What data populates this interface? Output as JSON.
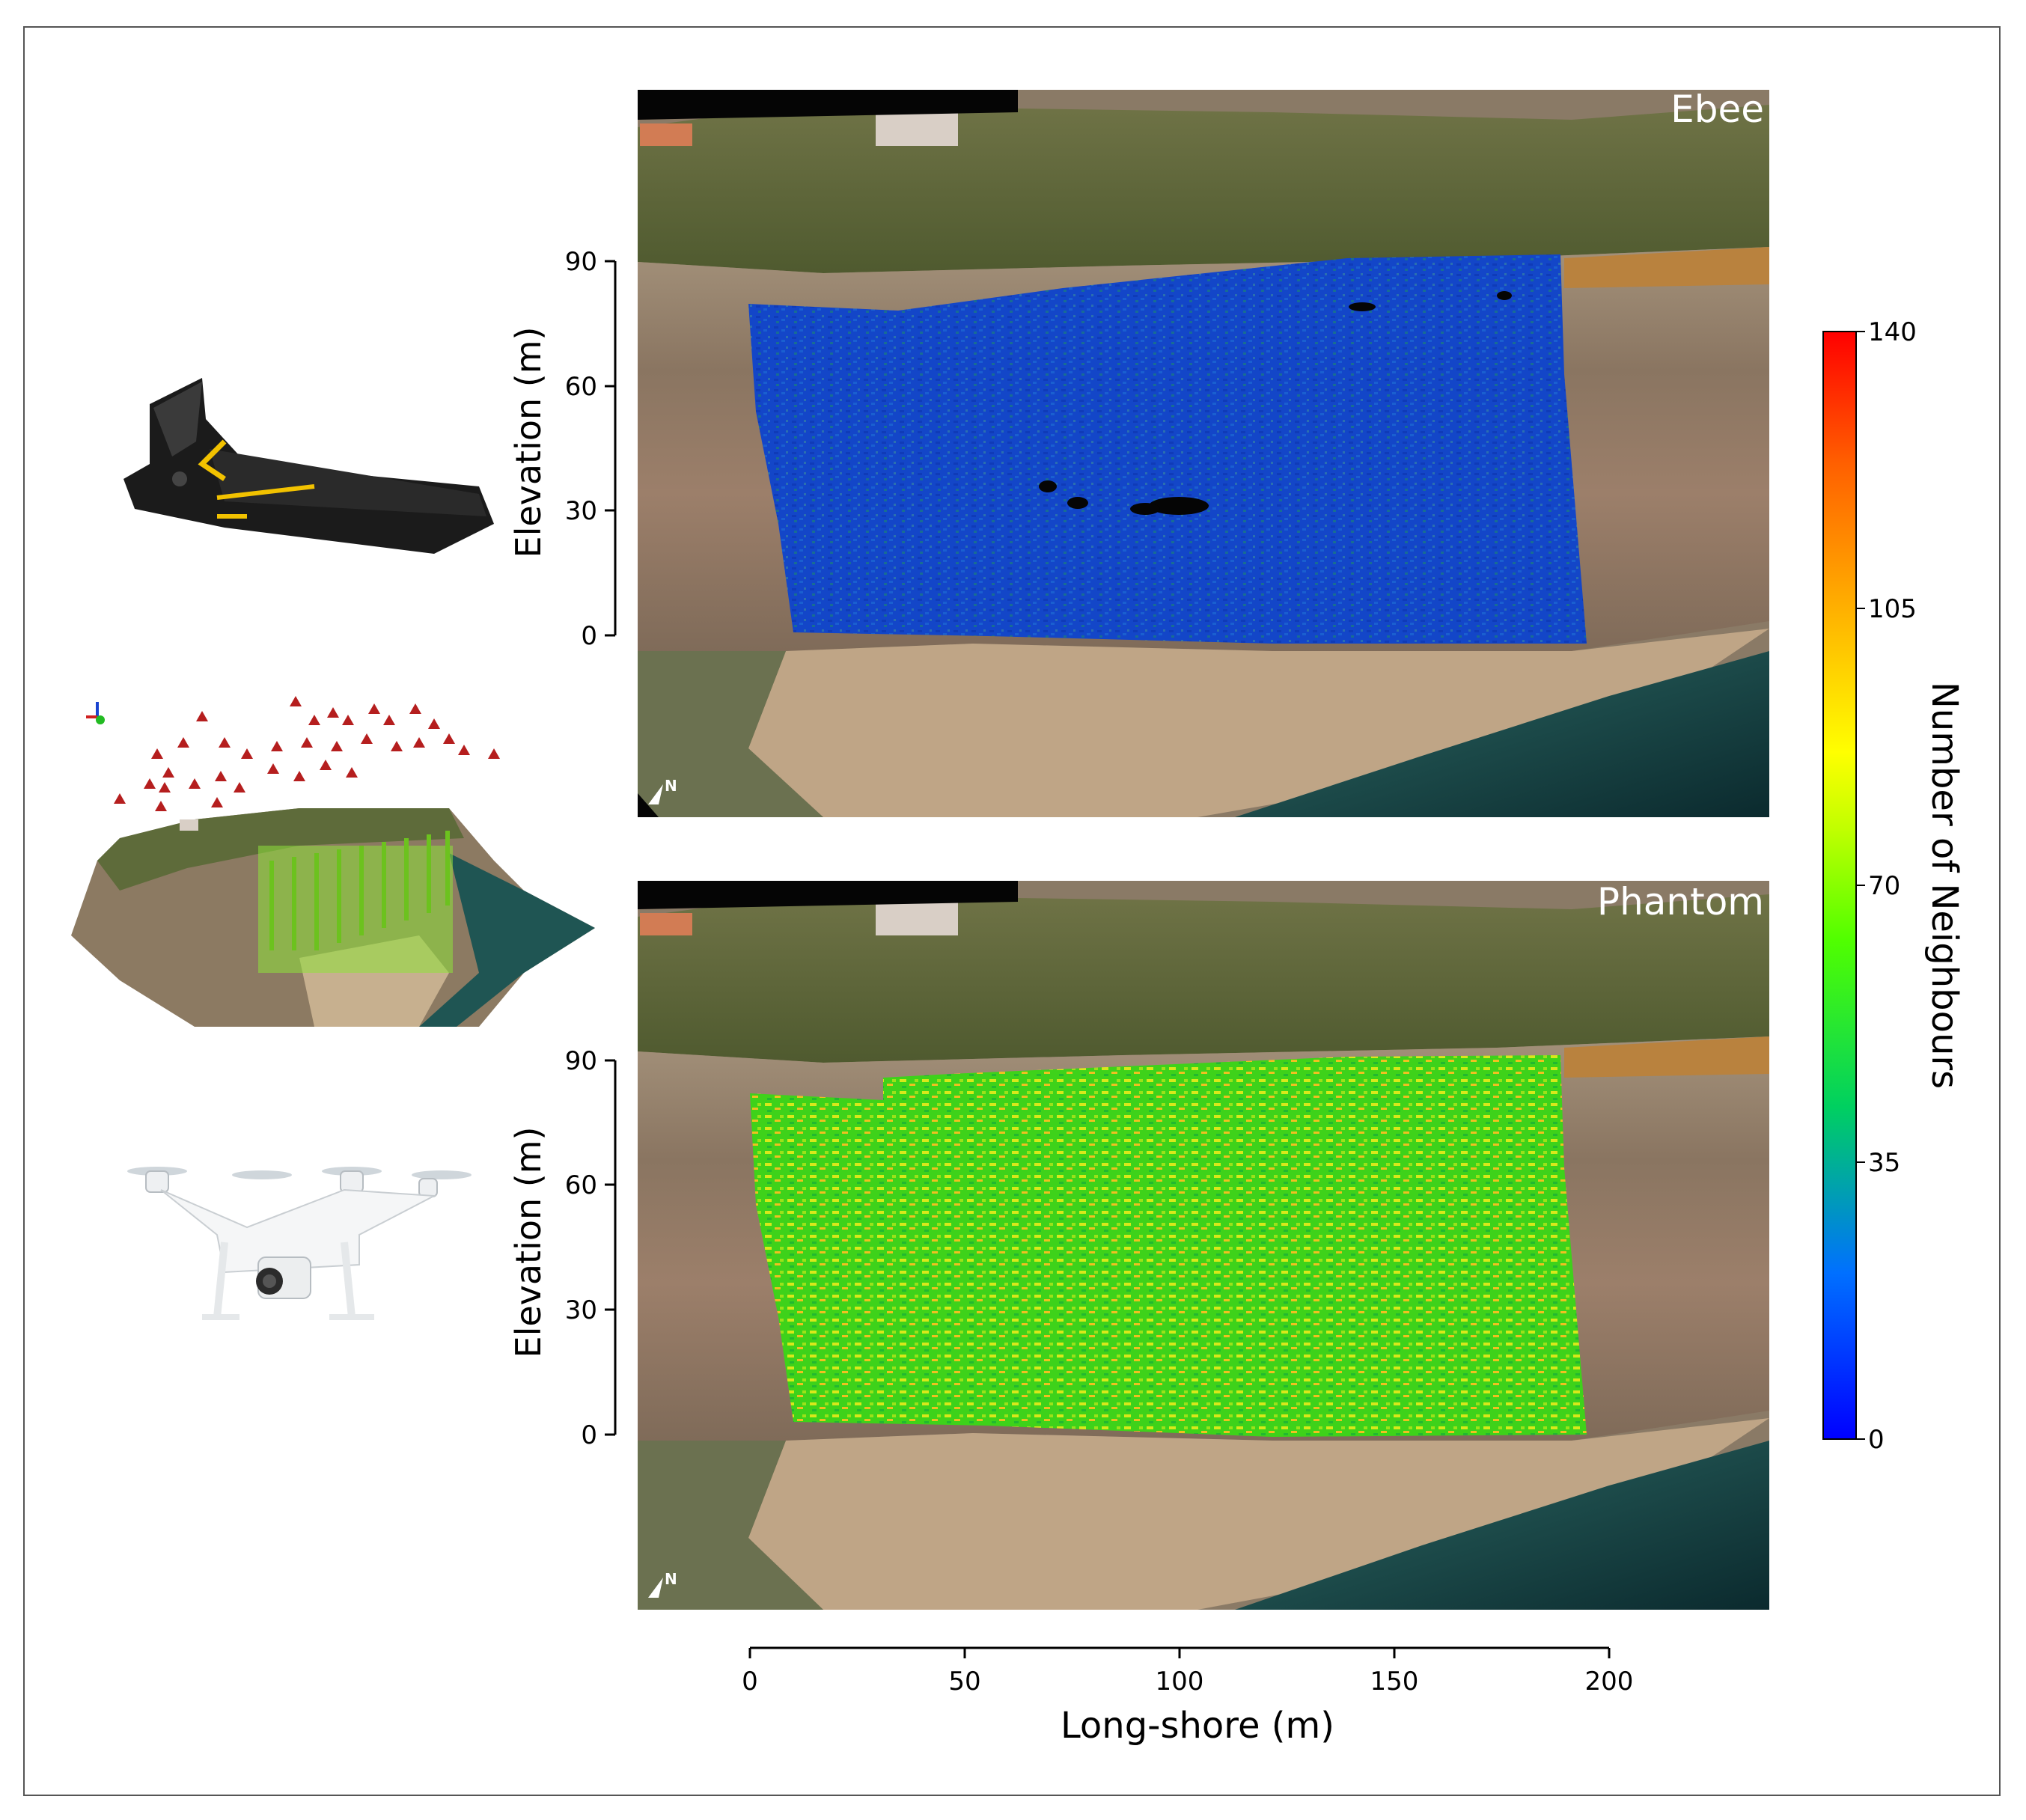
{
  "figure": {
    "panels": [
      {
        "label": "Ebee",
        "north_label": "N"
      },
      {
        "label": "Phantom",
        "north_label": "N"
      }
    ],
    "colorbar": {
      "label": "Number of Neighbours",
      "ticks": [
        "0",
        "35",
        "70",
        "105",
        "140"
      ],
      "range": [
        0,
        140
      ],
      "colormap": [
        "#0000ff",
        "#00bfff",
        "#00ff00",
        "#ffff00",
        "#ff9900",
        "#ff0000"
      ]
    },
    "icons": [
      "fixed-wing-drone-icon",
      "camera-positions-3d-model-icon",
      "quadcopter-drone-icon"
    ]
  },
  "chart_data": [
    {
      "type": "heatmap",
      "title": "Ebee",
      "xlabel": "Long-shore (m)",
      "ylabel": "Elevation (m)",
      "xlim": [
        0,
        200
      ],
      "ylim": [
        0,
        90
      ],
      "xticks": [
        "0",
        "50",
        "100",
        "150",
        "200"
      ],
      "yticks": [
        "0",
        "30",
        "60",
        "90"
      ],
      "colorbar_label": "Number of Neighbours",
      "color_range": [
        0,
        140
      ],
      "dominant_value_range": [
        0,
        15
      ]
    },
    {
      "type": "heatmap",
      "title": "Phantom",
      "xlabel": "Long-shore (m)",
      "ylabel": "Elevation (m)",
      "xlim": [
        0,
        200
      ],
      "ylim": [
        0,
        90
      ],
      "xticks": [
        "0",
        "50",
        "100",
        "150",
        "200"
      ],
      "yticks": [
        "0",
        "30",
        "60",
        "90"
      ],
      "colorbar_label": "Number of Neighbours",
      "color_range": [
        0,
        140
      ],
      "dominant_value_range": [
        50,
        90
      ]
    }
  ]
}
